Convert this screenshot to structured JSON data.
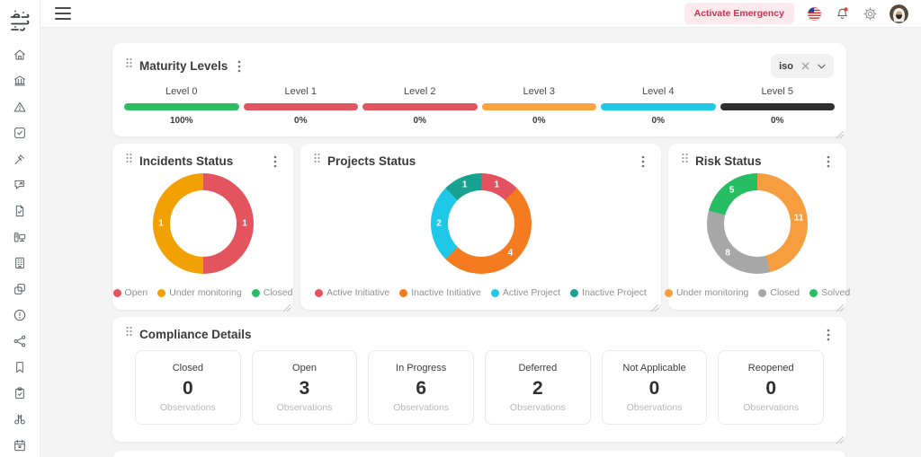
{
  "topbar": {
    "emergency_label": "Activate Emergency",
    "icons": [
      "menu",
      "us-flag",
      "notification-bell",
      "gear",
      "user-avatar"
    ]
  },
  "sidebar": {
    "icons": [
      "home",
      "bank",
      "warning-triangle",
      "task-check",
      "gavel",
      "message-share",
      "document-check",
      "workstation",
      "building",
      "copy",
      "alert-circle",
      "network",
      "bookmark",
      "clipboard-check",
      "binoculars",
      "calendar"
    ]
  },
  "maturity": {
    "title": "Maturity Levels",
    "filter": {
      "value": "iso"
    },
    "levels": [
      {
        "label": "Level 0",
        "percent": "100%",
        "color": "#2dbd63"
      },
      {
        "label": "Level 1",
        "percent": "0%",
        "color": "#e15562"
      },
      {
        "label": "Level 2",
        "percent": "0%",
        "color": "#e15562"
      },
      {
        "label": "Level 3",
        "percent": "0%",
        "color": "#f9a440"
      },
      {
        "label": "Level 4",
        "percent": "0%",
        "color": "#1fc9e8"
      },
      {
        "label": "Level 5",
        "percent": "0%",
        "color": "#303030"
      }
    ]
  },
  "chart_data": [
    {
      "type": "pie",
      "title": "Incidents Status",
      "legend_position": "bottom",
      "series": [
        {
          "name": "Open",
          "value": 1,
          "color": "#e4545f"
        },
        {
          "name": "Under monitoring",
          "value": 1,
          "color": "#f2a104"
        },
        {
          "name": "Closed",
          "value": 0,
          "color": "#27bd62"
        }
      ]
    },
    {
      "type": "pie",
      "title": "Projects Status",
      "legend_position": "bottom",
      "series": [
        {
          "name": "Active Initiative",
          "value": 1,
          "color": "#e4515f"
        },
        {
          "name": "Inactive Initiative",
          "value": 4,
          "color": "#f57b20"
        },
        {
          "name": "Active Project",
          "value": 2,
          "color": "#1fc8e6"
        },
        {
          "name": "Inactive Project",
          "value": 1,
          "color": "#16a191"
        }
      ]
    },
    {
      "type": "pie",
      "title": "Risk Status",
      "legend_position": "bottom",
      "series": [
        {
          "name": "Under monitoring",
          "value": 11,
          "color": "#f59d3f"
        },
        {
          "name": "Closed",
          "value": 8,
          "color": "#a7a7a7"
        },
        {
          "name": "Solved",
          "value": 5,
          "color": "#27bd62"
        }
      ]
    }
  ],
  "compliance": {
    "title": "Compliance Details",
    "stats": [
      {
        "label": "Closed",
        "value": "0",
        "sub": "Observations"
      },
      {
        "label": "Open",
        "value": "3",
        "sub": "Observations"
      },
      {
        "label": "In Progress",
        "value": "6",
        "sub": "Observations"
      },
      {
        "label": "Deferred",
        "value": "2",
        "sub": "Observations"
      },
      {
        "label": "Not Applicable",
        "value": "0",
        "sub": "Observations"
      },
      {
        "label": "Reopened",
        "value": "0",
        "sub": "Observations"
      }
    ]
  }
}
